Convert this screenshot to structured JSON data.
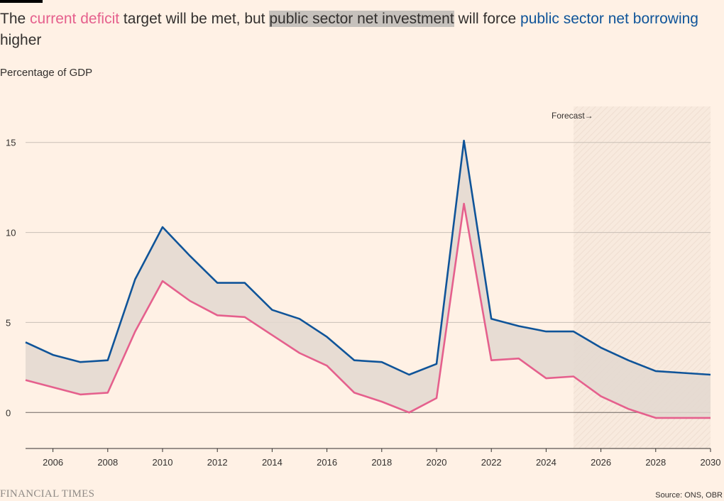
{
  "headline": {
    "part1": "The ",
    "current_deficit": "current deficit",
    "part2": " target will be met, but ",
    "psni": "public sector net investment",
    "part3": " will force ",
    "psnb": "public sector net borrowing",
    "part4": " higher"
  },
  "subtitle": "Percentage of GDP",
  "forecast_label": "Forecast→",
  "source": "Source: ONS, OBR",
  "logo_text": "FINANCIAL TIMES",
  "colors": {
    "background": "#fff1e5",
    "borrowing": "#0f5499",
    "deficit": "#e5608d",
    "band": "#e3d8d0",
    "grid": "#c9bfb6"
  },
  "chart_data": {
    "type": "line",
    "title": "The current deficit target will be met, but public sector net investment will force public sector net borrowing higher",
    "ylabel": "Percentage of GDP",
    "xlabel": "",
    "x": [
      2005,
      2006,
      2007,
      2008,
      2009,
      2010,
      2011,
      2012,
      2013,
      2014,
      2015,
      2016,
      2017,
      2018,
      2019,
      2020,
      2021,
      2022,
      2023,
      2024,
      2025,
      2026,
      2027,
      2028,
      2029,
      2030
    ],
    "series": [
      {
        "name": "public sector net borrowing",
        "color": "#0f5499",
        "values": [
          3.9,
          3.2,
          2.8,
          2.9,
          7.4,
          10.3,
          8.7,
          7.2,
          7.2,
          5.7,
          5.2,
          4.2,
          2.9,
          2.8,
          2.1,
          2.7,
          15.1,
          5.2,
          4.8,
          4.5,
          4.5,
          3.6,
          2.9,
          2.3,
          2.2,
          2.1
        ]
      },
      {
        "name": "current deficit",
        "color": "#e5608d",
        "values": [
          1.8,
          1.4,
          1.0,
          1.1,
          4.5,
          7.3,
          6.2,
          5.4,
          5.3,
          4.3,
          3.3,
          2.6,
          1.1,
          0.6,
          0.0,
          0.8,
          11.6,
          2.9,
          3.0,
          1.9,
          2.0,
          0.9,
          0.2,
          -0.3,
          -0.3,
          -0.3
        ]
      }
    ],
    "band_label": "public sector net investment",
    "xlim": [
      2005,
      2030
    ],
    "ylim": [
      -2,
      17
    ],
    "xticks": [
      2006,
      2008,
      2010,
      2012,
      2014,
      2016,
      2018,
      2020,
      2022,
      2024,
      2026,
      2028,
      2030
    ],
    "yticks": [
      0,
      5,
      10,
      15
    ],
    "forecast_start": 2025,
    "grid": true
  }
}
